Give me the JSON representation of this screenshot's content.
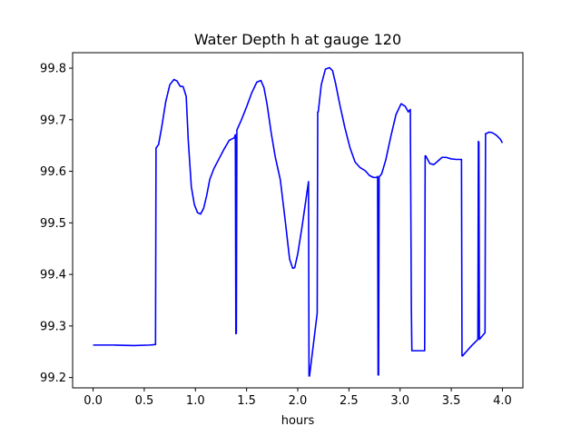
{
  "chart_data": {
    "type": "line",
    "title": "Water Depth h at gauge 120",
    "xlabel": "hours",
    "ylabel": "",
    "xlim": [
      -0.2,
      4.2
    ],
    "ylim": [
      99.18,
      99.83
    ],
    "x_ticks": [
      0.0,
      0.5,
      1.0,
      1.5,
      2.0,
      2.5,
      3.0,
      3.5,
      4.0
    ],
    "x_tick_labels": [
      "0.0",
      "0.5",
      "1.0",
      "1.5",
      "2.0",
      "2.5",
      "3.0",
      "3.5",
      "4.0"
    ],
    "y_ticks": [
      99.2,
      99.3,
      99.4,
      99.5,
      99.6,
      99.7,
      99.8
    ],
    "y_tick_labels": [
      "99.2",
      "99.3",
      "99.4",
      "99.5",
      "99.6",
      "99.7",
      "99.8"
    ],
    "grid": false,
    "series": [
      {
        "color": "#0000ff",
        "x": [
          0.0,
          0.2,
          0.4,
          0.55,
          0.61,
          0.615,
          0.64,
          0.67,
          0.71,
          0.75,
          0.79,
          0.82,
          0.85,
          0.88,
          0.91,
          0.93,
          0.96,
          0.99,
          1.02,
          1.05,
          1.08,
          1.11,
          1.14,
          1.18,
          1.23,
          1.28,
          1.33,
          1.38,
          1.39,
          1.395,
          1.4,
          1.405,
          1.45,
          1.5,
          1.55,
          1.6,
          1.64,
          1.67,
          1.7,
          1.74,
          1.78,
          1.83,
          1.88,
          1.92,
          1.95,
          1.97,
          2.0,
          2.04,
          2.08,
          2.105,
          2.11,
          2.115,
          2.19,
          2.195,
          2.2,
          2.23,
          2.27,
          2.31,
          2.34,
          2.37,
          2.41,
          2.46,
          2.51,
          2.56,
          2.61,
          2.66,
          2.7,
          2.74,
          2.77,
          2.78,
          2.785,
          2.79,
          2.795,
          2.82,
          2.86,
          2.91,
          2.96,
          3.01,
          3.05,
          3.08,
          3.1,
          3.11,
          3.115,
          3.24,
          3.245,
          3.25,
          3.29,
          3.33,
          3.37,
          3.41,
          3.45,
          3.5,
          3.55,
          3.6,
          3.605,
          3.61,
          3.7,
          3.76,
          3.765,
          3.77,
          3.775,
          3.83,
          3.835,
          3.84,
          3.87,
          3.9,
          3.94,
          3.98,
          4.0
        ],
        "y": [
          99.263,
          99.263,
          99.262,
          99.263,
          99.264,
          99.645,
          99.652,
          99.685,
          99.735,
          99.768,
          99.778,
          99.775,
          99.765,
          99.764,
          99.745,
          99.66,
          99.57,
          99.535,
          99.52,
          99.517,
          99.528,
          99.553,
          99.584,
          99.605,
          99.624,
          99.643,
          99.66,
          99.665,
          99.671,
          99.285,
          99.286,
          99.68,
          99.7,
          99.725,
          99.752,
          99.773,
          99.776,
          99.762,
          99.73,
          99.675,
          99.628,
          99.583,
          99.5,
          99.43,
          99.412,
          99.413,
          99.44,
          99.49,
          99.545,
          99.58,
          99.203,
          99.203,
          99.325,
          99.715,
          99.715,
          99.768,
          99.798,
          99.801,
          99.795,
          99.77,
          99.73,
          99.685,
          99.646,
          99.618,
          99.607,
          99.601,
          99.592,
          99.588,
          99.588,
          99.59,
          99.205,
          99.205,
          99.589,
          99.595,
          99.622,
          99.668,
          99.71,
          99.731,
          99.726,
          99.715,
          99.72,
          99.333,
          99.252,
          99.252,
          99.63,
          99.63,
          99.615,
          99.613,
          99.62,
          99.627,
          99.627,
          99.624,
          99.623,
          99.623,
          99.242,
          99.242,
          99.262,
          99.274,
          99.658,
          99.656,
          99.274,
          99.287,
          99.673,
          99.673,
          99.676,
          99.675,
          99.67,
          99.662,
          99.655
        ]
      }
    ]
  }
}
